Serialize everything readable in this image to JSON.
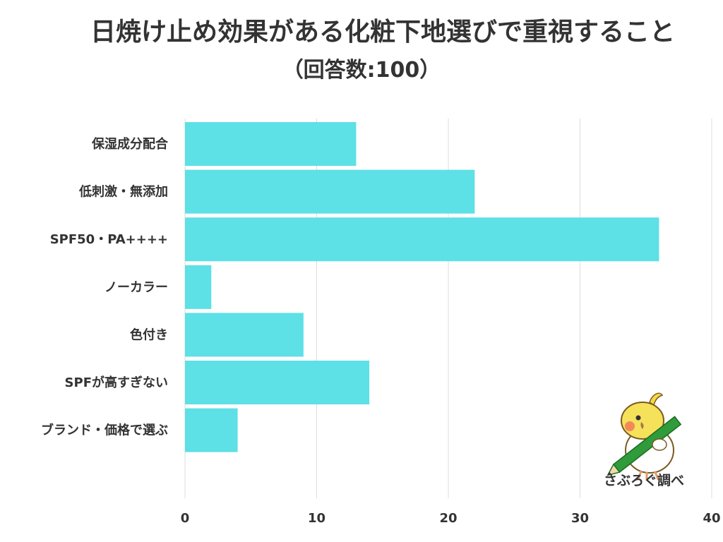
{
  "header": {
    "title": "日焼け止め効果がある化粧下地選びで重視すること",
    "subtitle": "（回答数:100）"
  },
  "chart_data": {
    "type": "bar",
    "orientation": "horizontal",
    "title": "日焼け止め効果がある化粧下地選びで重視すること",
    "subtitle": "（回答数:100）",
    "categories": [
      "保湿成分配合",
      "低刺激・無添加",
      "SPF50・PA++++",
      "ノーカラー",
      "色付き",
      "SPFが高すぎない",
      "ブランド・価格で選ぶ"
    ],
    "values": [
      13,
      22,
      36,
      2,
      9,
      14,
      4
    ],
    "xlim": [
      0,
      40
    ],
    "xticks": [
      0,
      10,
      20,
      30,
      40
    ],
    "grid": true,
    "bar_color": "#5de0e6",
    "xlabel": "",
    "ylabel": ""
  },
  "watermark": {
    "credit": "さぶろぐ調べ",
    "mascot_icon": "bird-with-pencil-icon"
  }
}
